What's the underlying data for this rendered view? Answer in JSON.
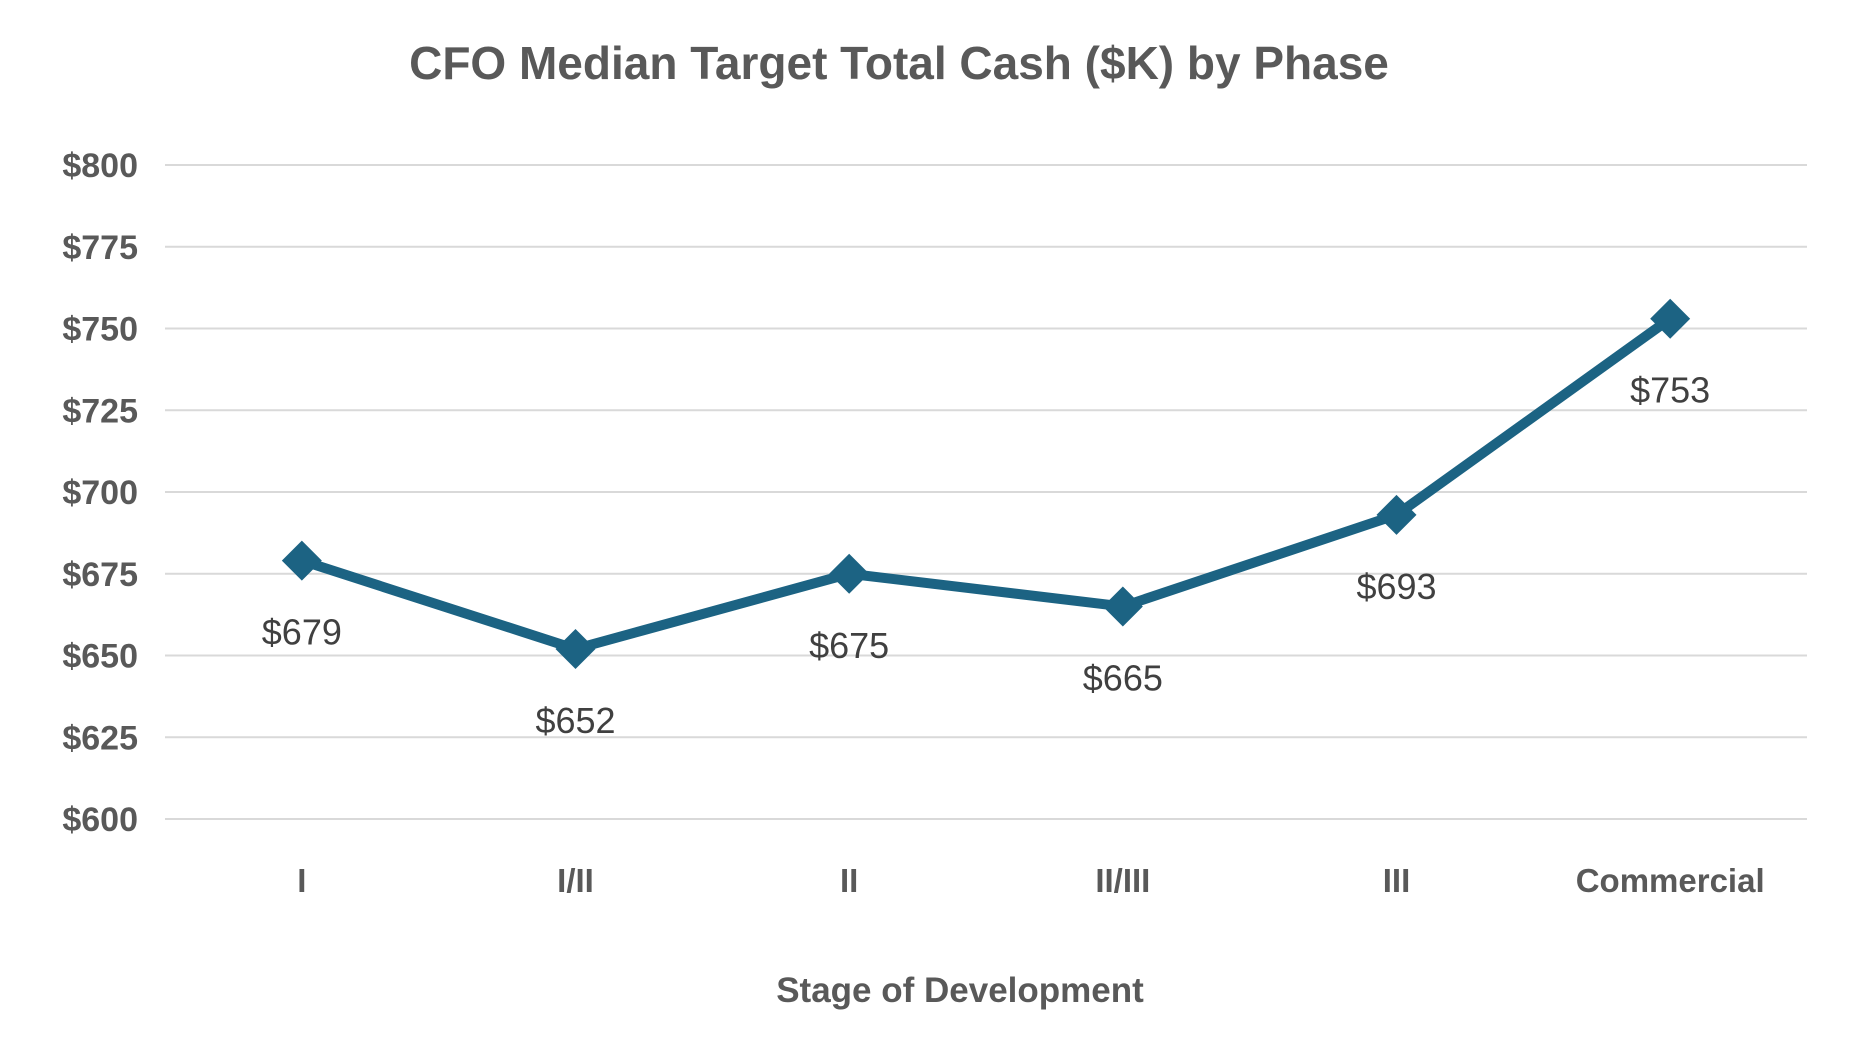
{
  "chart_data": {
    "type": "line",
    "title": "CFO Median Target Total Cash ($K) by Phase",
    "xlabel": "Stage of Development",
    "ylabel": "",
    "categories": [
      "I",
      "I/II",
      "II",
      "II/III",
      "III",
      "Commercial"
    ],
    "series": [
      {
        "name": "CFO Median Target Total Cash",
        "values": [
          679,
          652,
          675,
          665,
          693,
          753
        ],
        "data_labels": [
          "$679",
          "$652",
          "$675",
          "$665",
          "$693",
          "$753"
        ]
      }
    ],
    "ylim": [
      600,
      800
    ],
    "ytick_step": 25,
    "ytick_labels": [
      "$600",
      "$625",
      "$650",
      "$675",
      "$700",
      "$725",
      "$750",
      "$775",
      "$800"
    ],
    "grid": true,
    "legend_position": "none",
    "marker": "diamond",
    "colors": {
      "line": "#1C6383",
      "marker": "#1C6383",
      "gridline": "#D9D9D9",
      "axis_text": "#595959",
      "data_label_text": "#404040",
      "background": "#FFFFFF"
    }
  }
}
